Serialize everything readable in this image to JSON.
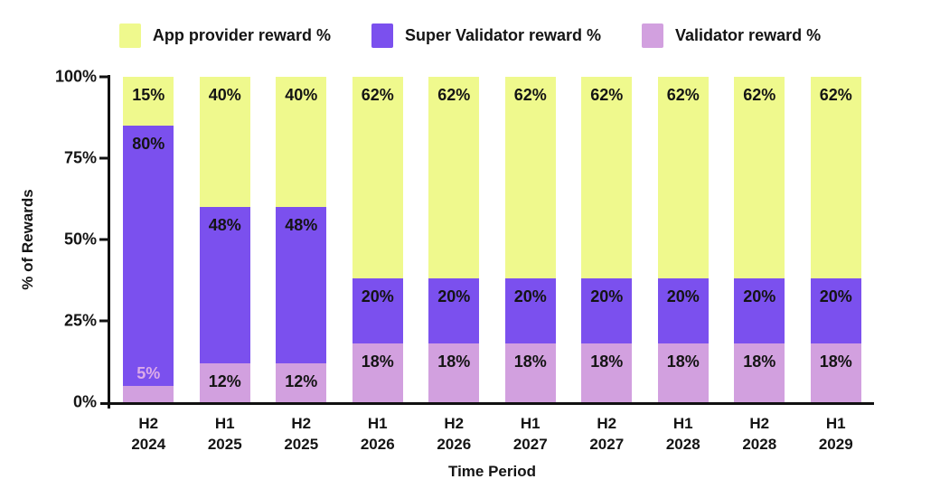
{
  "legend": {
    "items": [
      {
        "label": "App provider reward %",
        "color": "#EFF98D"
      },
      {
        "label": "Super Validator reward %",
        "color": "#7B50EE"
      },
      {
        "label": "Validator reward %",
        "color": "#D2A0DF"
      }
    ]
  },
  "axes": {
    "y_title": "% of Rewards",
    "x_title": "Time Period",
    "y_ticks": [
      "100%",
      "75%",
      "50%",
      "25%",
      "0%"
    ]
  },
  "chart_data": {
    "type": "bar",
    "stacked": true,
    "title": "",
    "xlabel": "Time Period",
    "ylabel": "% of Rewards",
    "ylim": [
      0,
      100
    ],
    "grid": false,
    "legend_position": "top",
    "value_suffix": "%",
    "categories": [
      "H2 2024",
      "H1 2025",
      "H2 2025",
      "H1 2026",
      "H2 2026",
      "H1 2027",
      "H2 2027",
      "H1 2028",
      "H2 2028",
      "H1 2029"
    ],
    "series": [
      {
        "name": "Validator reward %",
        "color": "#D2A0DF",
        "values": [
          5,
          12,
          12,
          18,
          18,
          18,
          18,
          18,
          18,
          18
        ]
      },
      {
        "name": "Super Validator reward %",
        "color": "#7B50EE",
        "values": [
          80,
          48,
          48,
          20,
          20,
          20,
          20,
          20,
          20,
          20
        ]
      },
      {
        "name": "App provider reward %",
        "color": "#EFF98D",
        "values": [
          15,
          40,
          40,
          62,
          62,
          62,
          62,
          62,
          62,
          62
        ]
      }
    ],
    "small_label": {
      "threshold": 6,
      "color": "#DCABE8"
    }
  }
}
